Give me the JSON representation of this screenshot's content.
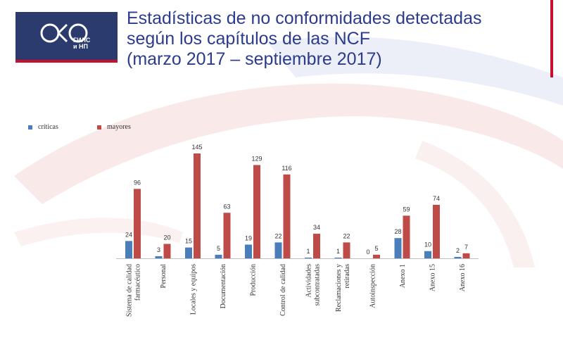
{
  "logo": {
    "line1": "ГИЛС",
    "line2": "и НП"
  },
  "title": {
    "line1": "Estadísticas de no conformidades detectadas",
    "line2": "según los capítulos de las NCF",
    "line3": "(marzo 2017 – septiembre 2017)"
  },
  "colors": {
    "criticas": "#4a7ebb",
    "mayores": "#be4b48",
    "title": "#2c3b8c",
    "brand": "#2c3b6e",
    "accent": "#c8102e"
  },
  "chart_data": {
    "type": "bar",
    "categories": [
      [
        "Sistema de calidad",
        "farmacéutico"
      ],
      [
        "Personal"
      ],
      [
        "Locales y equipos"
      ],
      [
        "Documentación"
      ],
      [
        "Producción"
      ],
      [
        "Control de calidad"
      ],
      [
        "Actividades",
        "subcontratadas"
      ],
      [
        "Reclamaciones y",
        "retiradas"
      ],
      [
        "Autoinspección"
      ],
      [
        "Anexo 1"
      ],
      [
        "Anexo 15"
      ],
      [
        "Anexo 16"
      ]
    ],
    "series": [
      {
        "name": "críticas",
        "values": [
          24,
          3,
          15,
          5,
          19,
          22,
          1,
          1,
          0,
          28,
          10,
          2
        ]
      },
      {
        "name": "mayores",
        "values": [
          96,
          20,
          145,
          63,
          129,
          116,
          34,
          22,
          5,
          59,
          74,
          7
        ]
      }
    ],
    "ylim": [
      0,
      150
    ],
    "grid": false,
    "legend": "top-left"
  }
}
